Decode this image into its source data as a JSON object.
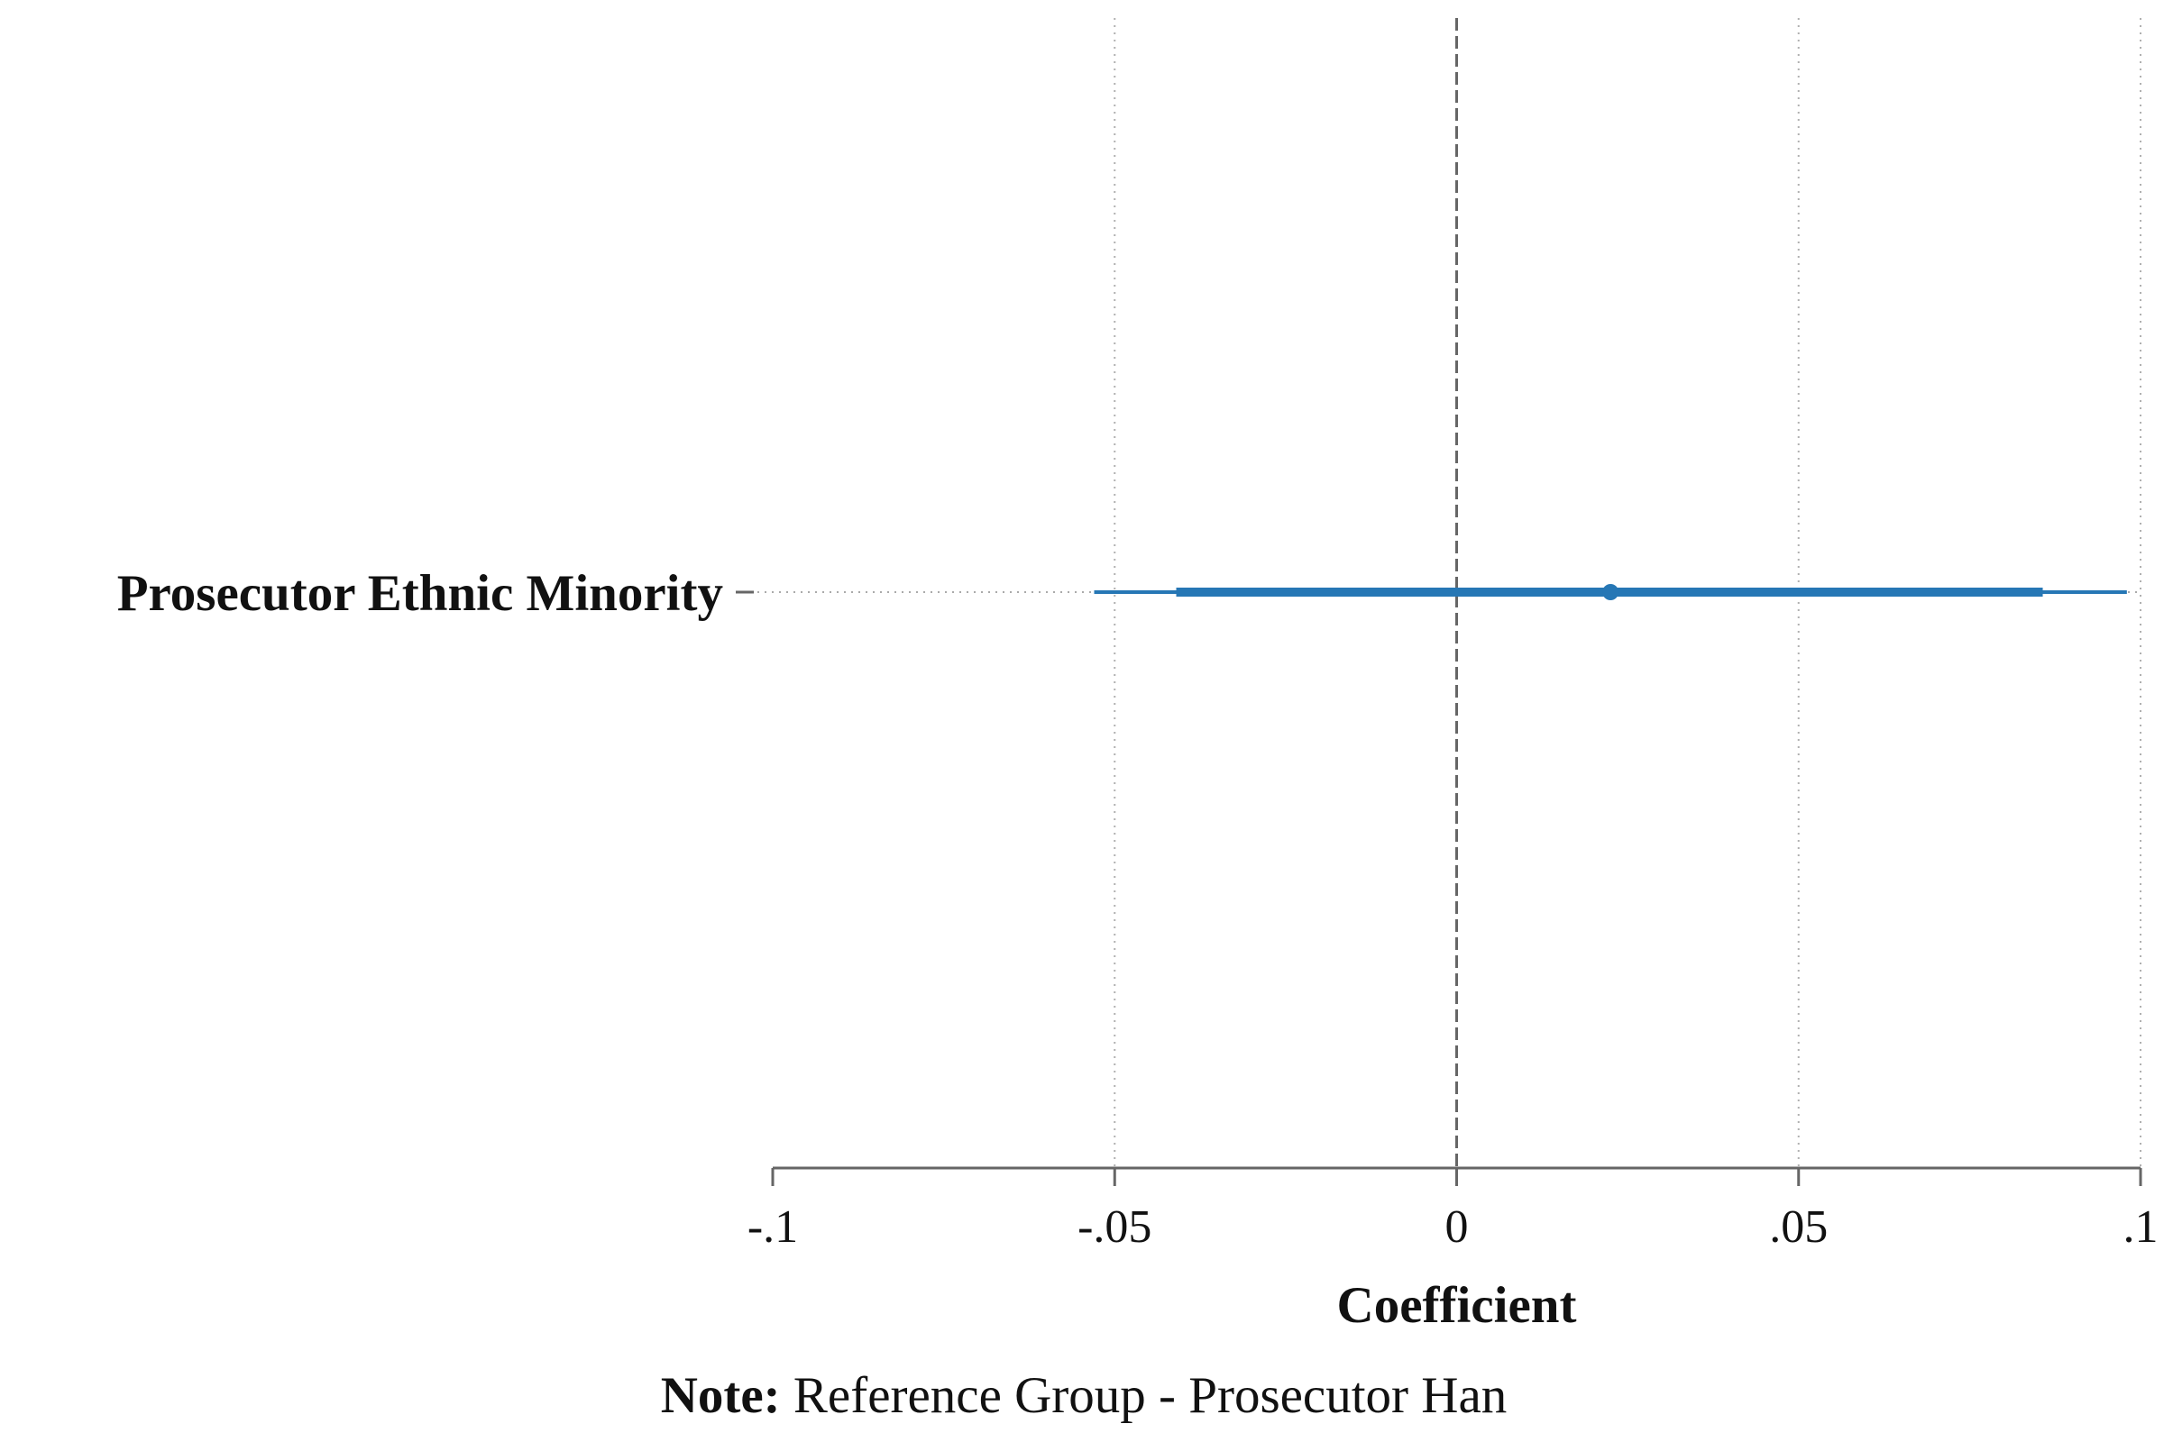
{
  "chart_data": {
    "type": "scatter",
    "subtype": "coefficient-plot",
    "orientation": "horizontal",
    "xlabel": "Coefficient",
    "xlim": [
      -0.1,
      0.1
    ],
    "x_ticks": [
      {
        "value": -0.1,
        "label": "-.1"
      },
      {
        "value": -0.05,
        "label": "-.05"
      },
      {
        "value": 0,
        "label": "0"
      },
      {
        "value": 0.05,
        "label": ".05"
      },
      {
        "value": 0.1,
        "label": ".1"
      }
    ],
    "reference_line": 0,
    "grid": "vertical dotted at ticks",
    "color": "#2677b5",
    "coefficients": [
      {
        "label": "Prosecutor Ethnic Minority",
        "estimate": 0.0225,
        "ci_inner": [
          -0.041,
          0.0857
        ],
        "ci_outer": [
          -0.053,
          0.098
        ]
      }
    ],
    "note": {
      "bold": "Note:",
      "text": " Reference Group - Prosecutor Han"
    }
  }
}
